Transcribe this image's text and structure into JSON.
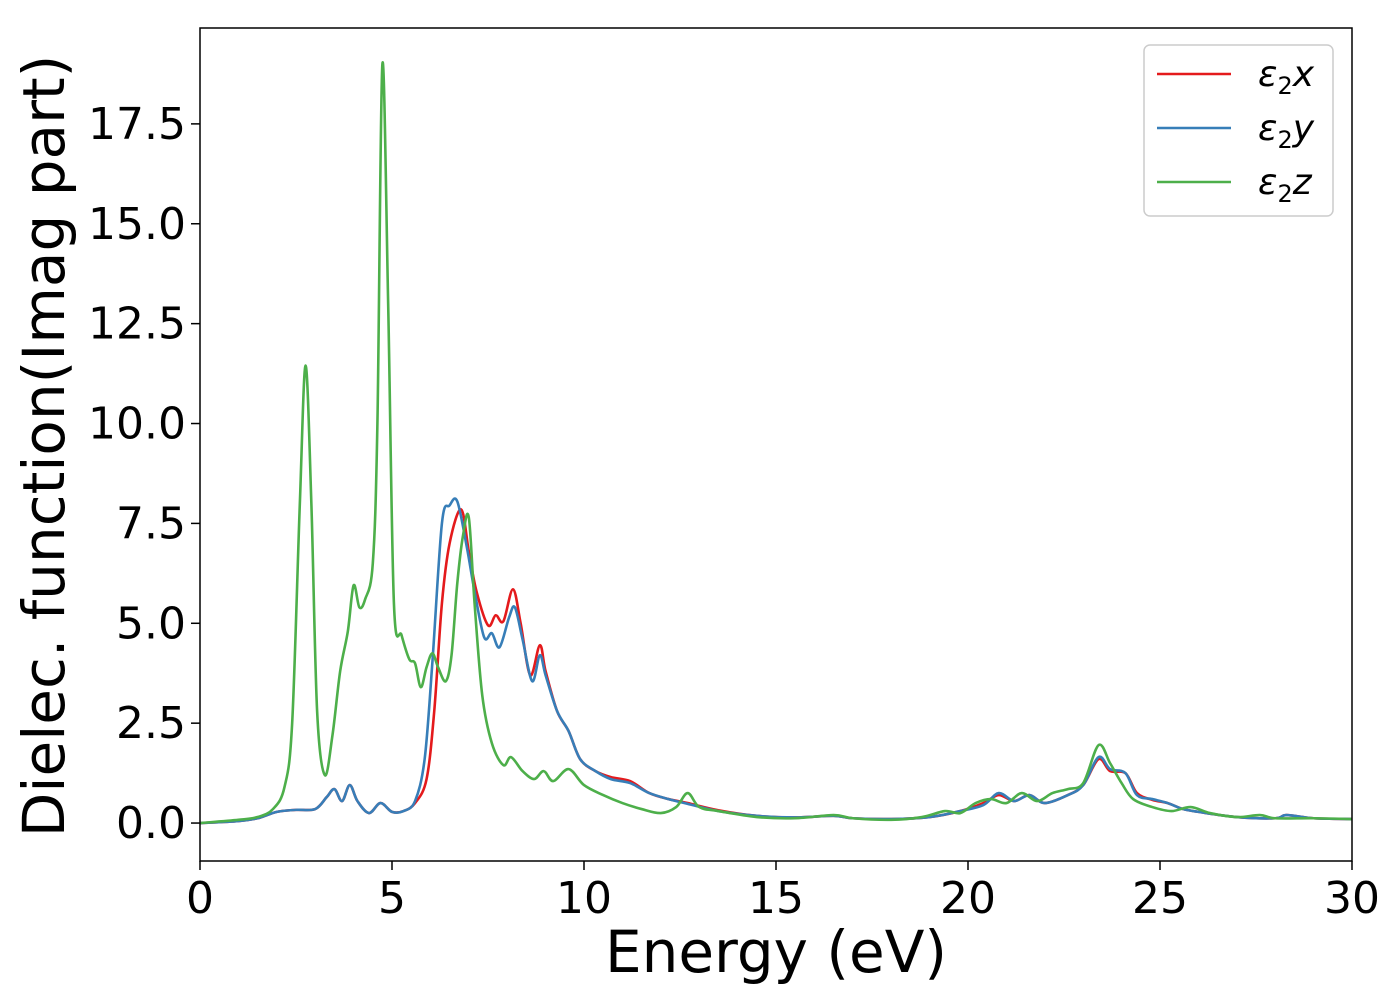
{
  "chart_data": {
    "type": "line",
    "xlabel": "Energy (eV)",
    "ylabel": "Dielec. function(Imag part)",
    "xlim": [
      0,
      30
    ],
    "ylim": [
      -0.95,
      19.9
    ],
    "x_ticks": [
      0,
      5,
      10,
      15,
      20,
      25,
      30
    ],
    "x_tick_labels": [
      "0",
      "5",
      "10",
      "15",
      "20",
      "25",
      "30"
    ],
    "y_ticks": [
      0.0,
      2.5,
      5.0,
      7.5,
      10.0,
      12.5,
      15.0,
      17.5
    ],
    "y_tick_labels": [
      "0.0",
      "2.5",
      "5.0",
      "7.5",
      "10.0",
      "12.5",
      "15.0",
      "17.5"
    ],
    "grid": false,
    "legend_position": "top-right",
    "series": [
      {
        "name": "ε2x",
        "legend_base": "ε",
        "legend_sub": "2",
        "legend_tail": "x",
        "color": "#e41a1c",
        "points": [
          [
            0,
            0
          ],
          [
            1,
            0.05
          ],
          [
            1.5,
            0.12
          ],
          [
            2,
            0.28
          ],
          [
            2.5,
            0.33
          ],
          [
            3,
            0.35
          ],
          [
            3.3,
            0.65
          ],
          [
            3.5,
            0.85
          ],
          [
            3.7,
            0.55
          ],
          [
            3.9,
            0.95
          ],
          [
            4.1,
            0.55
          ],
          [
            4.4,
            0.25
          ],
          [
            4.7,
            0.5
          ],
          [
            5.0,
            0.28
          ],
          [
            5.3,
            0.3
          ],
          [
            5.6,
            0.5
          ],
          [
            5.9,
            1.1
          ],
          [
            6.1,
            2.8
          ],
          [
            6.3,
            5.5
          ],
          [
            6.5,
            7.0
          ],
          [
            6.8,
            7.85
          ],
          [
            7.0,
            6.8
          ],
          [
            7.2,
            5.8
          ],
          [
            7.5,
            4.95
          ],
          [
            7.7,
            5.2
          ],
          [
            7.9,
            5.05
          ],
          [
            8.15,
            5.85
          ],
          [
            8.35,
            5.0
          ],
          [
            8.6,
            3.7
          ],
          [
            8.85,
            4.45
          ],
          [
            9.0,
            3.8
          ],
          [
            9.3,
            2.8
          ],
          [
            9.6,
            2.3
          ],
          [
            9.9,
            1.6
          ],
          [
            10.3,
            1.3
          ],
          [
            10.7,
            1.15
          ],
          [
            11.2,
            1.05
          ],
          [
            11.7,
            0.75
          ],
          [
            12.2,
            0.6
          ],
          [
            12.7,
            0.5
          ],
          [
            13.5,
            0.32
          ],
          [
            14.5,
            0.18
          ],
          [
            15.5,
            0.14
          ],
          [
            16.5,
            0.18
          ],
          [
            17,
            0.12
          ],
          [
            18,
            0.1
          ],
          [
            19,
            0.15
          ],
          [
            19.8,
            0.3
          ],
          [
            20.4,
            0.5
          ],
          [
            20.8,
            0.7
          ],
          [
            21.2,
            0.55
          ],
          [
            21.6,
            0.7
          ],
          [
            22,
            0.5
          ],
          [
            22.6,
            0.7
          ],
          [
            23,
            0.95
          ],
          [
            23.4,
            1.6
          ],
          [
            23.7,
            1.3
          ],
          [
            24.1,
            1.25
          ],
          [
            24.4,
            0.75
          ],
          [
            24.8,
            0.58
          ],
          [
            25.2,
            0.5
          ],
          [
            25.6,
            0.35
          ],
          [
            26,
            0.28
          ],
          [
            27,
            0.15
          ],
          [
            28,
            0.12
          ],
          [
            28.3,
            0.2
          ],
          [
            29,
            0.12
          ],
          [
            30,
            0.1
          ]
        ]
      },
      {
        "name": "ε2y",
        "legend_base": "ε",
        "legend_sub": "2",
        "legend_tail": "y",
        "color": "#377eb8",
        "points": [
          [
            0,
            0
          ],
          [
            1,
            0.05
          ],
          [
            1.5,
            0.12
          ],
          [
            2,
            0.28
          ],
          [
            2.5,
            0.33
          ],
          [
            3,
            0.35
          ],
          [
            3.3,
            0.65
          ],
          [
            3.5,
            0.85
          ],
          [
            3.7,
            0.55
          ],
          [
            3.9,
            0.95
          ],
          [
            4.1,
            0.55
          ],
          [
            4.4,
            0.25
          ],
          [
            4.7,
            0.5
          ],
          [
            5.0,
            0.28
          ],
          [
            5.3,
            0.3
          ],
          [
            5.6,
            0.55
          ],
          [
            5.85,
            1.6
          ],
          [
            6.05,
            4.0
          ],
          [
            6.3,
            7.5
          ],
          [
            6.5,
            7.95
          ],
          [
            6.7,
            8.05
          ],
          [
            6.95,
            6.9
          ],
          [
            7.15,
            5.8
          ],
          [
            7.4,
            4.65
          ],
          [
            7.6,
            4.75
          ],
          [
            7.8,
            4.4
          ],
          [
            8.05,
            5.15
          ],
          [
            8.2,
            5.4
          ],
          [
            8.4,
            4.6
          ],
          [
            8.65,
            3.55
          ],
          [
            8.85,
            4.2
          ],
          [
            9.0,
            3.7
          ],
          [
            9.3,
            2.8
          ],
          [
            9.6,
            2.3
          ],
          [
            9.9,
            1.6
          ],
          [
            10.3,
            1.3
          ],
          [
            10.7,
            1.1
          ],
          [
            11.2,
            1.0
          ],
          [
            11.7,
            0.75
          ],
          [
            12.2,
            0.6
          ],
          [
            12.7,
            0.48
          ],
          [
            13.5,
            0.3
          ],
          [
            14.5,
            0.18
          ],
          [
            15.5,
            0.14
          ],
          [
            16.5,
            0.18
          ],
          [
            17,
            0.12
          ],
          [
            18,
            0.1
          ],
          [
            19,
            0.15
          ],
          [
            19.8,
            0.3
          ],
          [
            20.4,
            0.45
          ],
          [
            20.8,
            0.75
          ],
          [
            21.2,
            0.55
          ],
          [
            21.6,
            0.7
          ],
          [
            22,
            0.5
          ],
          [
            22.6,
            0.7
          ],
          [
            23,
            0.95
          ],
          [
            23.4,
            1.65
          ],
          [
            23.7,
            1.35
          ],
          [
            24.1,
            1.25
          ],
          [
            24.4,
            0.7
          ],
          [
            24.8,
            0.6
          ],
          [
            25.2,
            0.5
          ],
          [
            25.6,
            0.35
          ],
          [
            26,
            0.28
          ],
          [
            27,
            0.15
          ],
          [
            28,
            0.12
          ],
          [
            28.3,
            0.2
          ],
          [
            29,
            0.12
          ],
          [
            30,
            0.1
          ]
        ]
      },
      {
        "name": "ε2z",
        "legend_base": "ε",
        "legend_sub": "2",
        "legend_tail": "z",
        "color": "#4daf4a",
        "points": [
          [
            0,
            0
          ],
          [
            1,
            0.08
          ],
          [
            1.5,
            0.15
          ],
          [
            1.9,
            0.35
          ],
          [
            2.2,
            0.9
          ],
          [
            2.4,
            2.5
          ],
          [
            2.6,
            8.0
          ],
          [
            2.75,
            11.45
          ],
          [
            2.9,
            8.0
          ],
          [
            3.05,
            2.8
          ],
          [
            3.25,
            1.2
          ],
          [
            3.45,
            2.2
          ],
          [
            3.65,
            3.8
          ],
          [
            3.85,
            4.8
          ],
          [
            4.0,
            5.95
          ],
          [
            4.15,
            5.4
          ],
          [
            4.3,
            5.6
          ],
          [
            4.5,
            6.5
          ],
          [
            4.62,
            10.0
          ],
          [
            4.75,
            19.0
          ],
          [
            4.9,
            13.0
          ],
          [
            5.05,
            5.5
          ],
          [
            5.25,
            4.7
          ],
          [
            5.45,
            4.1
          ],
          [
            5.6,
            4.0
          ],
          [
            5.75,
            3.4
          ],
          [
            5.9,
            3.9
          ],
          [
            6.05,
            4.25
          ],
          [
            6.2,
            3.9
          ],
          [
            6.4,
            3.55
          ],
          [
            6.55,
            4.2
          ],
          [
            6.7,
            6.0
          ],
          [
            6.85,
            7.2
          ],
          [
            7.0,
            7.65
          ],
          [
            7.15,
            5.5
          ],
          [
            7.35,
            3.2
          ],
          [
            7.6,
            2.0
          ],
          [
            7.9,
            1.45
          ],
          [
            8.1,
            1.65
          ],
          [
            8.4,
            1.3
          ],
          [
            8.7,
            1.1
          ],
          [
            8.95,
            1.3
          ],
          [
            9.2,
            1.05
          ],
          [
            9.6,
            1.35
          ],
          [
            10.0,
            0.95
          ],
          [
            10.5,
            0.7
          ],
          [
            11.0,
            0.5
          ],
          [
            11.5,
            0.35
          ],
          [
            12.0,
            0.25
          ],
          [
            12.4,
            0.4
          ],
          [
            12.7,
            0.75
          ],
          [
            13.0,
            0.4
          ],
          [
            13.5,
            0.3
          ],
          [
            14.5,
            0.15
          ],
          [
            15.5,
            0.12
          ],
          [
            16.5,
            0.2
          ],
          [
            17,
            0.12
          ],
          [
            18,
            0.08
          ],
          [
            18.8,
            0.15
          ],
          [
            19.4,
            0.3
          ],
          [
            19.8,
            0.25
          ],
          [
            20.2,
            0.5
          ],
          [
            20.6,
            0.6
          ],
          [
            21.0,
            0.5
          ],
          [
            21.4,
            0.75
          ],
          [
            21.8,
            0.55
          ],
          [
            22.2,
            0.75
          ],
          [
            22.6,
            0.85
          ],
          [
            23.0,
            1.0
          ],
          [
            23.4,
            1.95
          ],
          [
            23.7,
            1.5
          ],
          [
            24.0,
            1.0
          ],
          [
            24.3,
            0.6
          ],
          [
            24.8,
            0.4
          ],
          [
            25.3,
            0.3
          ],
          [
            25.8,
            0.4
          ],
          [
            26.3,
            0.25
          ],
          [
            27,
            0.15
          ],
          [
            27.6,
            0.2
          ],
          [
            28,
            0.12
          ],
          [
            29,
            0.12
          ],
          [
            30,
            0.1
          ]
        ]
      }
    ]
  }
}
